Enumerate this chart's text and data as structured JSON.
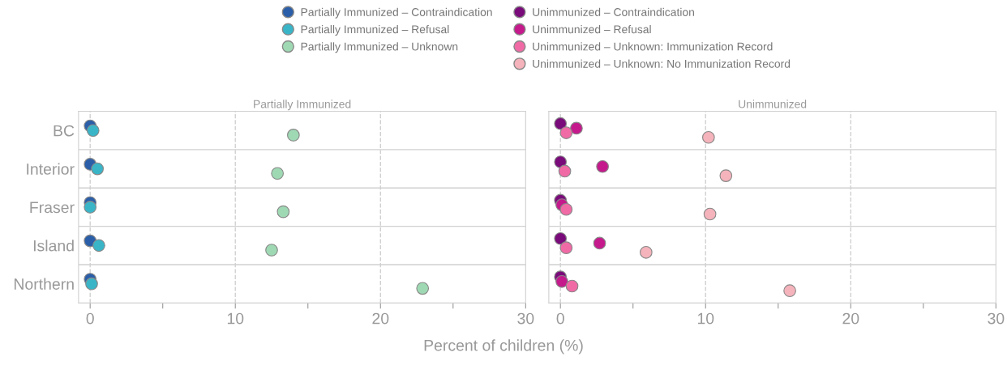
{
  "chart_data": [
    {
      "type": "scatter",
      "orientation": "horizontal",
      "title": "Partially Immunized",
      "xlabel": "Percent of children (%)",
      "categories": [
        "BC",
        "Interior",
        "Fraser",
        "Island",
        "Northern"
      ],
      "xlim": [
        -0.8,
        30
      ],
      "xticks": [
        0,
        {
          "value": 5,
          "label": null
        },
        10,
        {
          "value": 15,
          "label": null
        },
        20,
        {
          "value": 25,
          "label": null
        },
        30
      ],
      "grid": "x",
      "legend": "top",
      "marker": "circle",
      "series": [
        {
          "name": "Partially Immunized – Contraindication",
          "color": "#2a5ea8",
          "values": [
            0,
            0,
            0,
            0,
            0
          ]
        },
        {
          "name": "Partially Immunized – Refusal",
          "color": "#3ab5c8",
          "values": [
            0.2,
            0.5,
            0,
            0.6,
            0.1
          ]
        },
        {
          "name": "Partially Immunized – Unknown",
          "color": "#9fd9b4",
          "values": [
            14.0,
            12.9,
            13.3,
            12.5,
            22.9
          ]
        }
      ]
    },
    {
      "type": "scatter",
      "orientation": "horizontal",
      "title": "Unimmunized",
      "categories": [
        null,
        null,
        null,
        null,
        null
      ],
      "xlim": [
        -0.8,
        30
      ],
      "xticks": [
        0,
        {
          "value": 5,
          "label": null
        },
        10,
        {
          "value": 15,
          "label": null
        },
        20,
        {
          "value": 25,
          "label": null
        },
        30
      ],
      "grid": "x",
      "legend": "top",
      "marker": "circle",
      "series": [
        {
          "name": "Unimmunized – Contraindication",
          "color": "#7a0b7a",
          "values": [
            0,
            0,
            0,
            0,
            0
          ]
        },
        {
          "name": "Unimmunized – Refusal",
          "color": "#c41a8c",
          "values": [
            1.1,
            2.9,
            0.1,
            2.7,
            0.1
          ]
        },
        {
          "name": "Unimmunized – Unknown: Immunization Record",
          "color": "#f06aa6",
          "values": [
            0.4,
            0.3,
            0.4,
            0.4,
            0.8
          ]
        },
        {
          "name": "Unimmunized – Unknown: No Immunization Record",
          "color": "#f5b3bb",
          "values": [
            10.2,
            11.4,
            10.3,
            5.9,
            15.8
          ]
        }
      ]
    }
  ]
}
